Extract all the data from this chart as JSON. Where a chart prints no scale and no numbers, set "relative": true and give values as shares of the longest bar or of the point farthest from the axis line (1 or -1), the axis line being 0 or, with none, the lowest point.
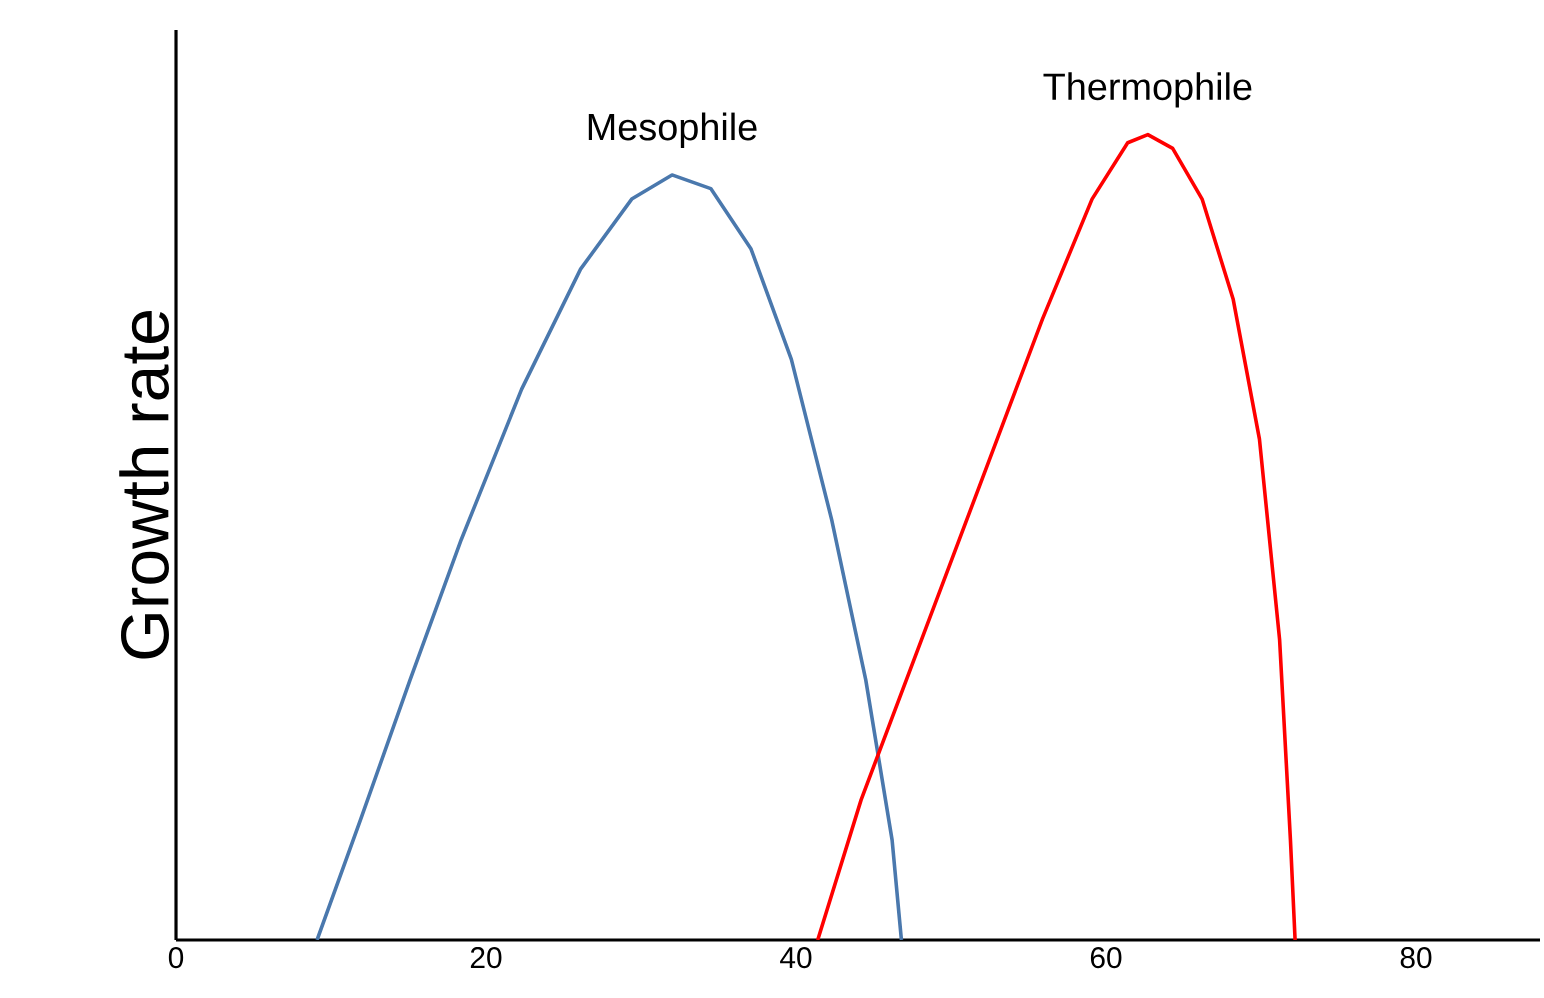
{
  "chart_data": {
    "type": "line",
    "ylabel": "Growth rate",
    "relative": true,
    "xlim": [
      0,
      88
    ],
    "xticks": [
      0,
      20,
      40,
      60,
      80
    ],
    "series": [
      {
        "name": "Mesophile",
        "color": "#4a78ad",
        "x": [
          9.1,
          11.9,
          15.1,
          18.4,
          22.3,
          26.1,
          29.4,
          32.0,
          34.5,
          37.1,
          39.7,
          42.3,
          44.5,
          46.2,
          46.8
        ],
        "values": [
          0,
          0.149,
          0.323,
          0.497,
          0.684,
          0.833,
          0.92,
          0.95,
          0.933,
          0.858,
          0.721,
          0.522,
          0.323,
          0.124,
          0
        ]
      },
      {
        "name": "Thermophile",
        "color": "#ff0000",
        "x": [
          41.4,
          44.2,
          48.1,
          52.0,
          55.9,
          59.1,
          61.4,
          62.7,
          64.3,
          66.2,
          68.2,
          69.9,
          71.2,
          71.9,
          72.2
        ],
        "values": [
          0,
          0.174,
          0.373,
          0.572,
          0.771,
          0.92,
          0.99,
          1.0,
          0.983,
          0.92,
          0.796,
          0.622,
          0.373,
          0.124,
          0
        ]
      }
    ]
  }
}
